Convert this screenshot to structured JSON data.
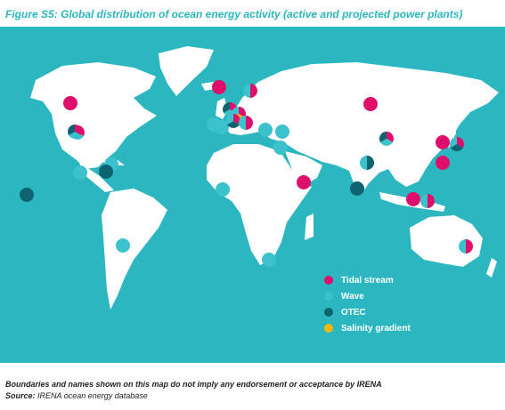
{
  "title": "Figure S5: Global distribution of ocean energy activity (active and projected power plants)",
  "colors": {
    "ocean": "#2cb7c0",
    "land": "#ffffff",
    "tidal": "#de0f6b",
    "wave": "#3cc2cc",
    "otec": "#0d6470",
    "salinity": "#f6b80c"
  },
  "legend": [
    {
      "label": "Tidal stream",
      "color": "#de0f6b"
    },
    {
      "label": "Wave",
      "color": "#3cc2cc"
    },
    {
      "label": "OTEC",
      "color": "#0d6470"
    },
    {
      "label": "Salinity gradient",
      "color": "#f6b80c"
    }
  ],
  "sites": [
    {
      "id": "canada-west",
      "types": [
        "tidal"
      ]
    },
    {
      "id": "canada-east",
      "types": [
        "tidal",
        "wave",
        "otec"
      ]
    },
    {
      "id": "us-east",
      "types": [
        "tidal",
        "wave",
        "otec"
      ]
    },
    {
      "id": "gulf-of-mexico",
      "types": [
        "wave"
      ]
    },
    {
      "id": "caribbean-1",
      "types": [
        "wave"
      ]
    },
    {
      "id": "caribbean-2",
      "types": [
        "otec"
      ]
    },
    {
      "id": "hawaii",
      "types": [
        "otec"
      ]
    },
    {
      "id": "chile",
      "types": [
        "wave"
      ]
    },
    {
      "id": "iceland",
      "types": [
        "tidal"
      ]
    },
    {
      "id": "norway",
      "types": [
        "tidal",
        "wave"
      ]
    },
    {
      "id": "uk",
      "types": [
        "tidal",
        "wave",
        "otec"
      ]
    },
    {
      "id": "netherlands",
      "types": [
        "tidal",
        "salinity",
        "wave"
      ]
    },
    {
      "id": "portugal",
      "types": [
        "wave"
      ]
    },
    {
      "id": "spain",
      "types": [
        "wave"
      ]
    },
    {
      "id": "france",
      "types": [
        "tidal",
        "otec",
        "wave"
      ]
    },
    {
      "id": "italy",
      "types": [
        "tidal",
        "wave"
      ]
    },
    {
      "id": "greece",
      "types": [
        "wave"
      ]
    },
    {
      "id": "turkey",
      "types": [
        "wave"
      ]
    },
    {
      "id": "middle-east",
      "types": [
        "wave"
      ]
    },
    {
      "id": "west-africa",
      "types": [
        "wave"
      ]
    },
    {
      "id": "east-africa",
      "types": [
        "tidal"
      ]
    },
    {
      "id": "south-africa",
      "types": [
        "wave"
      ]
    },
    {
      "id": "india-west",
      "types": [
        "otec",
        "wave"
      ]
    },
    {
      "id": "sri-lanka",
      "types": [
        "otec"
      ]
    },
    {
      "id": "russia",
      "types": [
        "tidal"
      ]
    },
    {
      "id": "china-north",
      "types": [
        "tidal",
        "wave",
        "otec"
      ]
    },
    {
      "id": "korea",
      "types": [
        "tidal"
      ]
    },
    {
      "id": "japan",
      "types": [
        "tidal",
        "otec",
        "wave"
      ]
    },
    {
      "id": "taiwan",
      "types": [
        "tidal"
      ]
    },
    {
      "id": "indonesia-1",
      "types": [
        "tidal"
      ]
    },
    {
      "id": "indonesia-2",
      "types": [
        "tidal",
        "wave"
      ]
    },
    {
      "id": "australia",
      "types": [
        "tidal",
        "wave"
      ]
    }
  ],
  "footer": {
    "disclaimer": "Boundaries and names shown on this map do not imply any endorsement or acceptance by IRENA",
    "source_label": "Source:",
    "source_text": " IRENA ocean energy database"
  }
}
